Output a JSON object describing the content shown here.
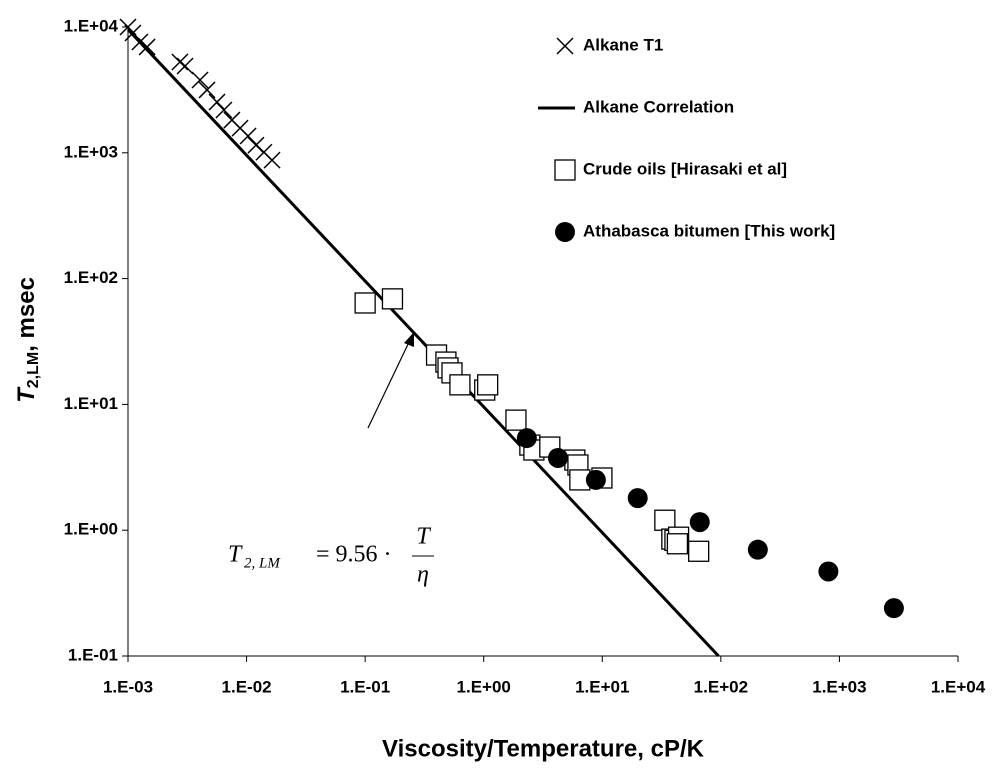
{
  "chart_data": {
    "type": "scatter",
    "x_label": "Viscosity/Temperature, cP/K",
    "y_label": {
      "main": "T",
      "sub": "2,LM",
      "rest": ", msec"
    },
    "log_x": true,
    "log_y": true,
    "xlim": [
      0.001,
      10000
    ],
    "ylim": [
      0.1,
      10000
    ],
    "xticks": [
      {
        "value": 0.001,
        "label": "1.E-03"
      },
      {
        "value": 0.01,
        "label": "1.E-02"
      },
      {
        "value": 0.1,
        "label": "1.E-01"
      },
      {
        "value": 1,
        "label": "1.E+00"
      },
      {
        "value": 10,
        "label": "1.E+01"
      },
      {
        "value": 100,
        "label": "1.E+02"
      },
      {
        "value": 1000,
        "label": "1.E+03"
      },
      {
        "value": 10000,
        "label": "1.E+04"
      }
    ],
    "yticks": [
      {
        "value": 0.1,
        "label": "1.E-01"
      },
      {
        "value": 1,
        "label": "1.E+00"
      },
      {
        "value": 10,
        "label": "1.E+01"
      },
      {
        "value": 100,
        "label": "1.E+02"
      },
      {
        "value": 1000,
        "label": "1.E+03"
      },
      {
        "value": 10000,
        "label": "1.E+04"
      }
    ],
    "legend": "top-right",
    "series": [
      {
        "name": "Alkane T1",
        "marker": "cross",
        "color": "#000000",
        "x": [
          0.001,
          0.0011,
          0.00126,
          0.00145,
          0.00274,
          0.00303,
          0.00405,
          0.00464,
          0.00563,
          0.00644,
          0.00752,
          0.00881,
          0.0103,
          0.012,
          0.014,
          0.0164
        ],
        "values": [
          10000,
          8960,
          7600,
          6940,
          5270,
          4900,
          3790,
          3160,
          2530,
          2190,
          1820,
          1570,
          1360,
          1150,
          1010,
          875
        ]
      },
      {
        "name": "Alkane Correlation",
        "marker": "line",
        "color": "#000000",
        "x": [
          0.001,
          95.6
        ],
        "values": [
          9560,
          0.1
        ]
      },
      {
        "name": "Crude oils [Hirasaki et al]",
        "marker": "square",
        "color": "#000000",
        "x": [
          0.1,
          0.17,
          0.4,
          0.48,
          0.5,
          0.54,
          0.63,
          1.02,
          1.08,
          1.87,
          2.45,
          2.65,
          3.61,
          5.87,
          6.23,
          6.47,
          9.93,
          33.7,
          38.6,
          41,
          44,
          43,
          65
        ],
        "values": [
          64,
          69,
          24.7,
          21.7,
          19.5,
          17.8,
          14.3,
          13.0,
          14.3,
          7.5,
          4.75,
          4.34,
          4.58,
          3.61,
          3.3,
          2.51,
          2.6,
          1.2,
          0.85,
          0.83,
          0.88,
          0.78,
          0.68
        ]
      },
      {
        "name": "Athabasca bitumen [This work]",
        "marker": "circle",
        "color": "#000000",
        "x": [
          2.31,
          4.23,
          8.83,
          19.9,
          66.4,
          205,
          807,
          2880
        ],
        "values": [
          5.4,
          3.75,
          2.51,
          1.8,
          1.16,
          0.7,
          0.47,
          0.24
        ]
      }
    ],
    "annotation": {
      "lhs": "T",
      "lhs_sub": "2, LM",
      "rhs": "= 9.56 ·",
      "num": "T",
      "den": "η"
    }
  }
}
